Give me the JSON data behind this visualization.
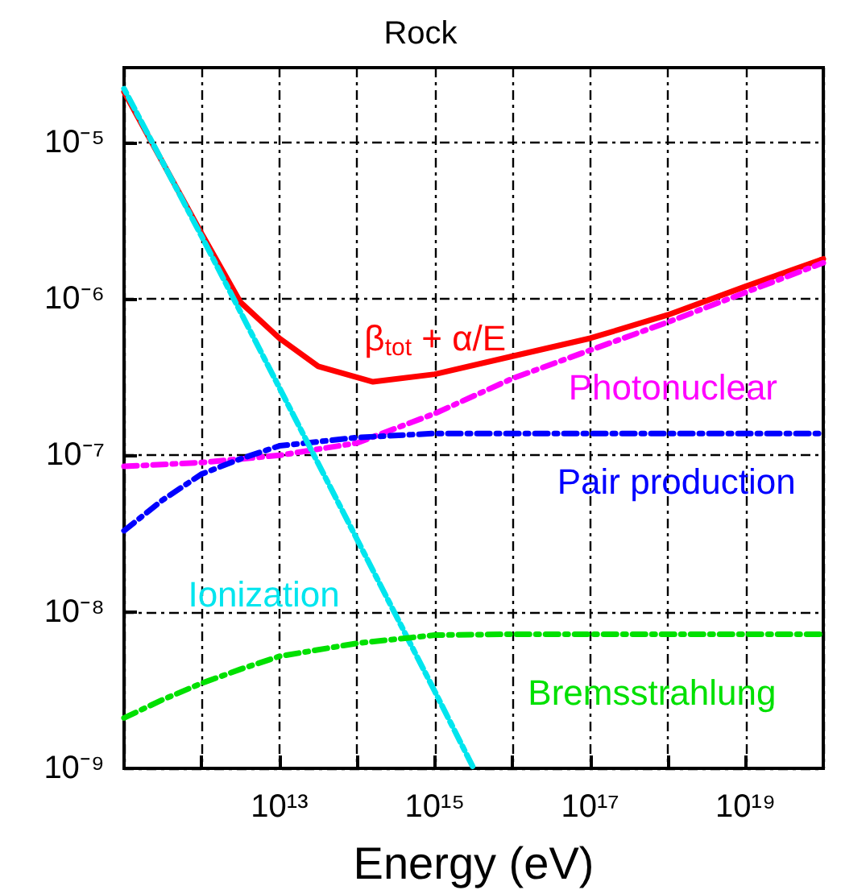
{
  "chart_data": {
    "type": "line",
    "title": "Rock",
    "xlabel": "Energy (eV)",
    "log": "xy",
    "grid": true,
    "legend": false,
    "marker": "none",
    "xlim": [
      100000000000.0,
      1e+20
    ],
    "ylim": [
      1e-09,
      3e-05
    ],
    "xticks": [
      {
        "value": 100000000000.0,
        "label": null
      },
      {
        "value": 1000000000000.0,
        "label": null
      },
      {
        "value": 10000000000000.0,
        "label": "10¹³"
      },
      {
        "value": 100000000000000.0,
        "label": null
      },
      {
        "value": 1000000000000000.0,
        "label": "10¹⁵"
      },
      {
        "value": 1e+16,
        "label": null
      },
      {
        "value": 1e+17,
        "label": "10¹⁷"
      },
      {
        "value": 1e+18,
        "label": null
      },
      {
        "value": 1e+19,
        "label": "10¹⁹"
      },
      {
        "value": 1e+20,
        "label": null
      }
    ],
    "yticks": [
      {
        "value": 1e-09,
        "label": "10⁻⁹"
      },
      {
        "value": 1e-08,
        "label": "10⁻⁸"
      },
      {
        "value": 1e-07,
        "label": "10⁻⁷"
      },
      {
        "value": 1e-06,
        "label": "10⁻⁶"
      },
      {
        "value": 1e-05,
        "label": "10⁻⁵"
      }
    ],
    "series": [
      {
        "name": "β$_{tot}$ + α/E",
        "color": "#ff0000",
        "line_style": "solid",
        "x": [
          100000000000.0,
          316000000000.0,
          1000000000000.0,
          3160000000000.0,
          10000000000000.0,
          31600000000000.0,
          160000000000000.0,
          1000000000000000.0,
          1e+16,
          1e+17,
          1e+18,
          1e+19,
          1e+20
        ],
        "values": [
          2.1e-05,
          7.4e-06,
          2.6e-06,
          9.5e-07,
          5.6e-07,
          3.7e-07,
          2.95e-07,
          3.3e-07,
          4.3e-07,
          5.6e-07,
          7.9e-07,
          1.2e-06,
          1.8e-06
        ]
      },
      {
        "name": "Photonuclear",
        "color": "#ff00ff",
        "line_style": "dashed",
        "x": [
          100000000000.0,
          1000000000000.0,
          10000000000000.0,
          100000000000000.0,
          1000000000000000.0,
          1e+16,
          1e+17,
          1e+18,
          1e+19,
          1e+20
        ],
        "values": [
          8.5e-08,
          9e-08,
          1e-07,
          1.2e-07,
          1.85e-07,
          3.1e-07,
          4.7e-07,
          7.1e-07,
          1.1e-06,
          1.7e-06
        ]
      },
      {
        "name": "Pair production",
        "color": "#0000ff",
        "line_style": "dashed",
        "x": [
          100000000000.0,
          316000000000.0,
          1000000000000.0,
          3160000000000.0,
          10000000000000.0,
          100000000000000.0,
          1000000000000000.0,
          1e+16,
          1e+17,
          1e+18,
          1e+19,
          1e+20
        ],
        "values": [
          3.3e-08,
          5.2e-08,
          7.6e-08,
          9.5e-08,
          1.15e-07,
          1.3e-07,
          1.38e-07,
          1.38e-07,
          1.38e-07,
          1.38e-07,
          1.38e-07,
          1.38e-07
        ]
      },
      {
        "name": "Ionization",
        "color": "#00e5ee",
        "line_style": "dotted",
        "x": [
          100000000000.0,
          1000000000000.0,
          10000000000000.0,
          100000000000000.0,
          1000000000000000.0,
          3160000000000000.0
        ],
        "values": [
          2.2e-05,
          2.5e-06,
          2.7e-07,
          2.9e-08,
          3.1e-09,
          1e-09
        ]
      },
      {
        "name": "Bremsstrahlung",
        "color": "#00e000",
        "line_style": "dashed",
        "x": [
          100000000000.0,
          316000000000.0,
          1000000000000.0,
          3160000000000.0,
          10000000000000.0,
          100000000000000.0,
          1000000000000000.0,
          1e+16,
          1e+17,
          1e+18,
          1e+19,
          1e+20
        ],
        "values": [
          2.1e-09,
          2.75e-09,
          3.5e-09,
          4.3e-09,
          5.2e-09,
          6.3e-09,
          7.1e-09,
          7.2e-09,
          7.2e-09,
          7.2e-09,
          7.2e-09,
          7.2e-09
        ]
      }
    ]
  }
}
